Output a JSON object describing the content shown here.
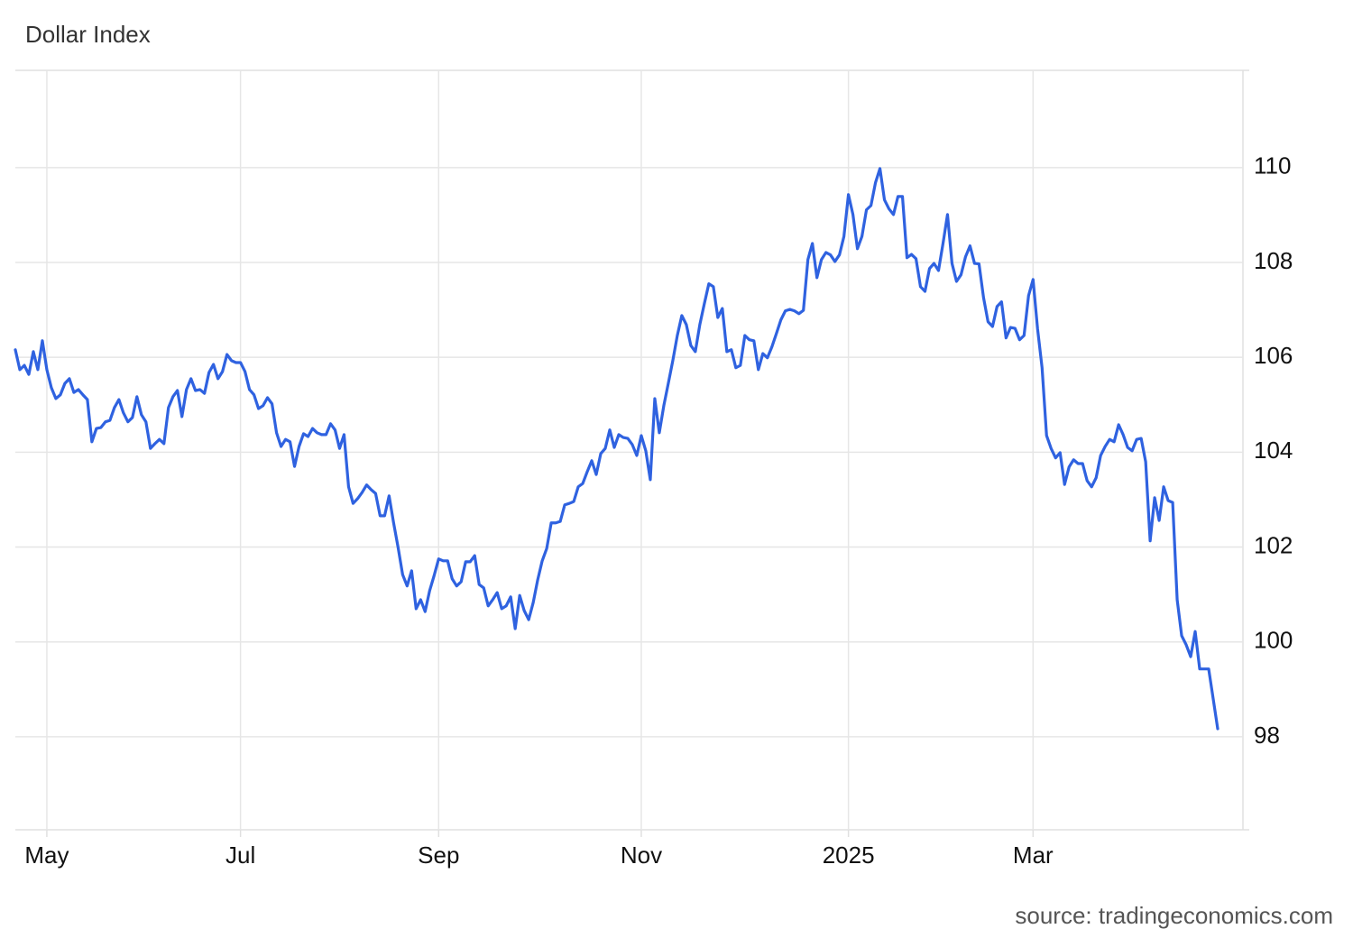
{
  "chart_data": {
    "type": "line",
    "title": "Dollar Index",
    "source": "source: tradingeconomics.com",
    "categories": [
      null,
      null,
      null,
      null,
      null,
      null,
      null,
      "May",
      null,
      null,
      null,
      null,
      null,
      null,
      null,
      null,
      null,
      null,
      null,
      null,
      null,
      null,
      null,
      null,
      null,
      null,
      null,
      null,
      null,
      null,
      null,
      null,
      null,
      null,
      null,
      null,
      null,
      null,
      null,
      null,
      null,
      null,
      null,
      null,
      null,
      null,
      null,
      null,
      null,
      null,
      "Jul",
      null,
      null,
      null,
      null,
      null,
      null,
      null,
      null,
      null,
      null,
      null,
      null,
      null,
      null,
      null,
      null,
      null,
      null,
      null,
      null,
      null,
      null,
      null,
      null,
      null,
      null,
      null,
      null,
      null,
      null,
      null,
      null,
      null,
      null,
      null,
      null,
      null,
      null,
      null,
      null,
      null,
      null,
      null,
      "Sep",
      null,
      null,
      null,
      null,
      null,
      null,
      null,
      null,
      null,
      null,
      null,
      null,
      null,
      null,
      null,
      null,
      null,
      null,
      null,
      null,
      null,
      null,
      null,
      null,
      null,
      null,
      null,
      null,
      null,
      null,
      null,
      null,
      null,
      null,
      null,
      null,
      null,
      null,
      null,
      null,
      null,
      null,
      null,
      null,
      "Nov",
      null,
      null,
      null,
      null,
      null,
      null,
      null,
      null,
      null,
      null,
      null,
      null,
      null,
      null,
      null,
      null,
      null,
      null,
      null,
      null,
      null,
      null,
      null,
      null,
      null,
      null,
      null,
      null,
      null,
      null,
      null,
      null,
      null,
      null,
      null,
      null,
      null,
      null,
      null,
      null,
      null,
      null,
      null,
      null,
      null,
      "2025",
      null,
      null,
      null,
      null,
      null,
      null,
      null,
      null,
      null,
      null,
      null,
      null,
      null,
      null,
      null,
      null,
      null,
      null,
      null,
      null,
      null,
      null,
      null,
      null,
      null,
      null,
      null,
      null,
      null,
      null,
      null,
      null,
      null,
      null,
      null,
      null,
      null,
      null,
      null,
      null,
      "Mar",
      null,
      null,
      null,
      null,
      null,
      null,
      null,
      null,
      null,
      null,
      null,
      null,
      null,
      null,
      null,
      null,
      null,
      null,
      null,
      null,
      null,
      null,
      null,
      null,
      null,
      null,
      null,
      null,
      null,
      null,
      null,
      null,
      null,
      null,
      null,
      null,
      null,
      null,
      null,
      null,
      null
    ],
    "values": [
      106.16,
      105.74,
      105.83,
      105.64,
      106.12,
      105.74,
      106.35,
      105.74,
      105.36,
      105.13,
      105.21,
      105.45,
      105.55,
      105.26,
      105.32,
      105.21,
      105.11,
      104.22,
      104.5,
      104.52,
      104.64,
      104.67,
      104.94,
      105.11,
      104.83,
      104.64,
      104.73,
      105.17,
      104.79,
      104.64,
      104.08,
      104.18,
      104.27,
      104.18,
      104.94,
      105.17,
      105.3,
      104.75,
      105.32,
      105.55,
      105.3,
      105.32,
      105.24,
      105.68,
      105.85,
      105.55,
      105.7,
      106.06,
      105.93,
      105.89,
      105.89,
      105.7,
      105.32,
      105.21,
      104.92,
      104.98,
      105.15,
      105.02,
      104.41,
      104.12,
      104.27,
      104.22,
      103.7,
      104.12,
      104.39,
      104.33,
      104.5,
      104.41,
      104.37,
      104.37,
      104.6,
      104.47,
      104.08,
      104.37,
      103.27,
      102.92,
      103.02,
      103.15,
      103.31,
      103.21,
      103.13,
      102.66,
      102.66,
      103.08,
      102.51,
      101.99,
      101.42,
      101.18,
      101.5,
      100.7,
      100.89,
      100.64,
      101.08,
      101.4,
      101.75,
      101.71,
      101.71,
      101.33,
      101.18,
      101.27,
      101.69,
      101.69,
      101.82,
      101.21,
      101.14,
      100.76,
      100.89,
      101.04,
      100.7,
      100.76,
      100.95,
      100.28,
      100.98,
      100.66,
      100.47,
      100.83,
      101.31,
      101.71,
      101.97,
      102.51,
      102.51,
      102.54,
      102.89,
      102.92,
      102.96,
      103.27,
      103.34,
      103.59,
      103.82,
      103.53,
      103.97,
      104.08,
      104.47,
      104.1,
      104.37,
      104.31,
      104.29,
      104.16,
      103.93,
      104.35,
      104.03,
      103.42,
      105.13,
      104.41,
      104.98,
      105.45,
      105.93,
      106.46,
      106.88,
      106.69,
      106.25,
      106.12,
      106.69,
      107.13,
      107.55,
      107.49,
      106.84,
      107.03,
      106.12,
      106.16,
      105.78,
      105.83,
      106.46,
      106.37,
      106.35,
      105.74,
      106.08,
      105.99,
      106.22,
      106.5,
      106.79,
      106.98,
      107.01,
      106.98,
      106.92,
      106.99,
      108.06,
      108.4,
      107.68,
      108.06,
      108.21,
      108.16,
      108.02,
      108.16,
      108.55,
      109.43,
      109.01,
      108.29,
      108.55,
      109.11,
      109.2,
      109.68,
      109.98,
      109.32,
      109.13,
      109.01,
      109.39,
      109.39,
      108.1,
      108.17,
      108.08,
      107.49,
      107.39,
      107.87,
      107.98,
      107.83,
      108.4,
      109.01,
      107.98,
      107.6,
      107.74,
      108.12,
      108.35,
      107.98,
      107.97,
      107.26,
      106.75,
      106.65,
      107.07,
      107.17,
      106.41,
      106.63,
      106.61,
      106.37,
      106.46,
      107.3,
      107.64,
      106.6,
      105.78,
      104.35,
      104.08,
      103.88,
      103.99,
      103.32,
      103.69,
      103.84,
      103.76,
      103.76,
      103.4,
      103.27,
      103.46,
      103.93,
      104.12,
      104.27,
      104.22,
      104.58,
      104.37,
      104.1,
      104.03,
      104.27,
      104.29,
      103.8,
      102.13,
      103.04,
      102.56,
      103.27,
      102.98,
      102.94,
      100.89,
      100.13,
      99.94,
      99.69,
      100.22,
      99.43,
      99.43,
      99.43,
      98.8,
      98.17
    ],
    "color": "#2f62e0",
    "ylim": [
      96.04,
      112.05
    ],
    "yticks": [
      98,
      100,
      102,
      104,
      106,
      108,
      110
    ],
    "grid": true
  }
}
